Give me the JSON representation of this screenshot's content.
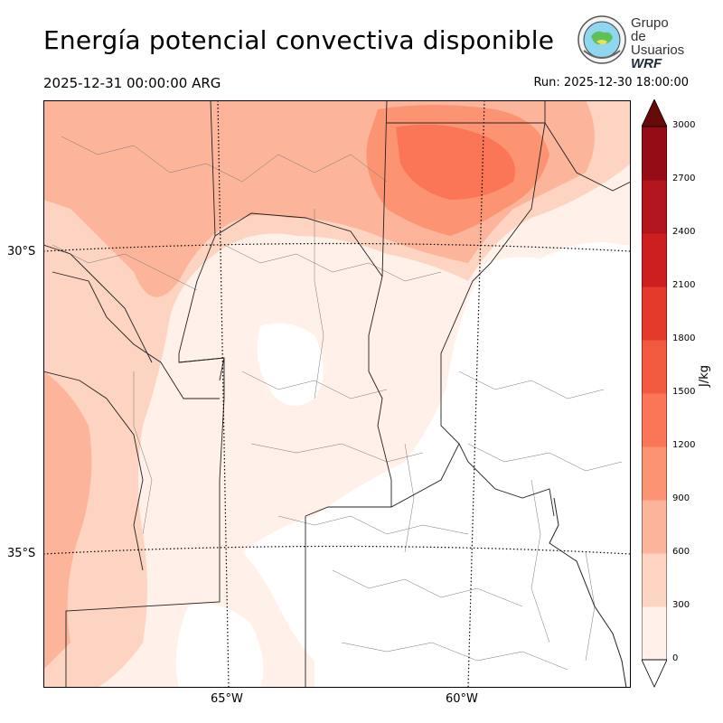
{
  "title": "Energía potencial convectiva disponible",
  "valid_time": "2025-12-31 00:00:00 ARG",
  "run_time": "Run: 2025-12-30 18:00:00",
  "logo": {
    "line1": "Grupo de",
    "line2": "Usuarios",
    "line3": "WRF",
    "seal_icon": "globe-seal-icon"
  },
  "map": {
    "lat_labels": [
      "30°S",
      "35°S"
    ],
    "lon_labels": [
      "65°W",
      "60°W"
    ],
    "projection": "lambert",
    "fill_field": "CAPE"
  },
  "colorbar": {
    "unit": "J/kg",
    "ticks": [
      "0",
      "300",
      "600",
      "900",
      "1200",
      "1500",
      "1800",
      "2100",
      "2400",
      "2700",
      "3000"
    ],
    "colors": [
      "#fff0e9",
      "#fdd4c2",
      "#fcb59a",
      "#fc9473",
      "#fa7657",
      "#f25a40",
      "#e43a2b",
      "#cd1f1f",
      "#b2151b",
      "#940c15",
      "#790812"
    ],
    "extend_max_color": "#670a0a"
  }
}
